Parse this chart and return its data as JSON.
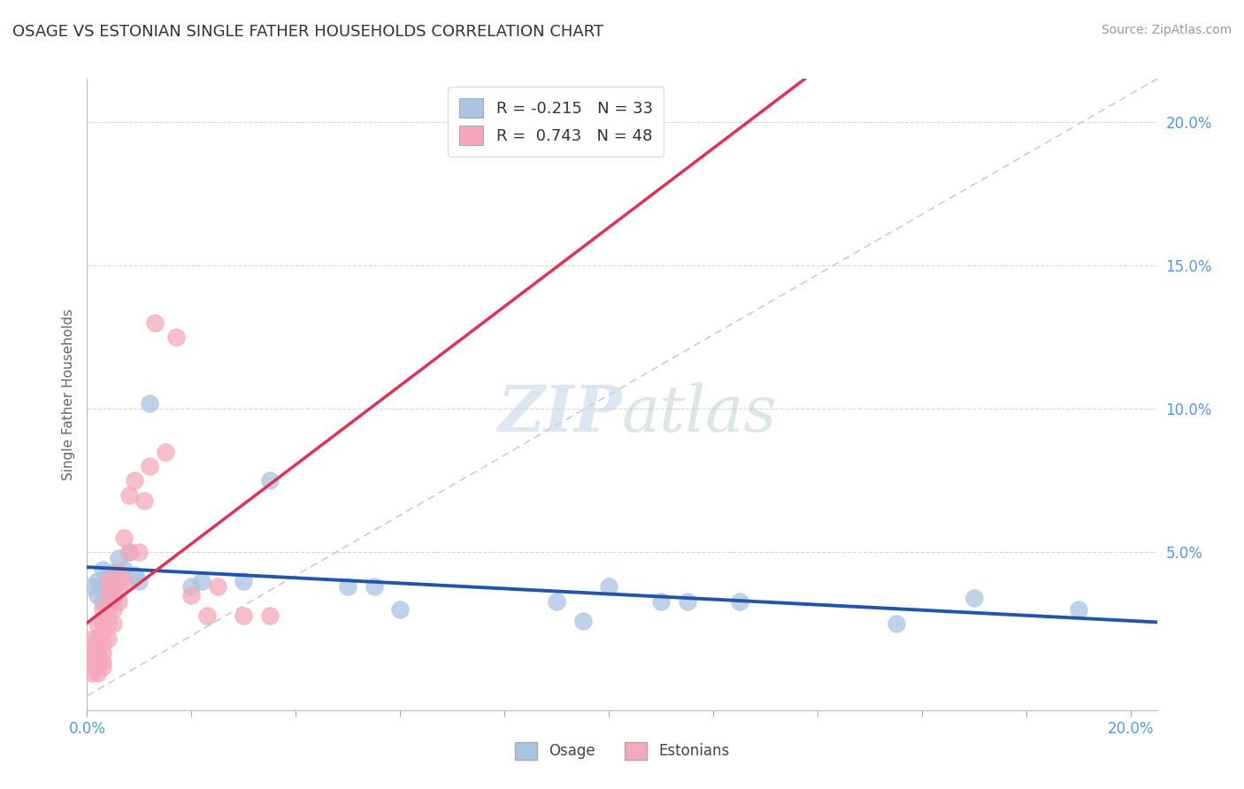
{
  "title": "OSAGE VS ESTONIAN SINGLE FATHER HOUSEHOLDS CORRELATION CHART",
  "source": "Source: ZipAtlas.com",
  "ylabel": "Single Father Households",
  "xlim": [
    0.0,
    0.205
  ],
  "ylim": [
    -0.005,
    0.215
  ],
  "ytick_vals": [
    0.05,
    0.1,
    0.15,
    0.2
  ],
  "xtick_vals": [
    0.0,
    0.2
  ],
  "osage_color": "#aac4e2",
  "estonian_color": "#f5a8bc",
  "osage_edge_color": "#88aad0",
  "estonian_edge_color": "#e888a8",
  "osage_line_color": "#2255aa",
  "estonian_line_color": "#dd3355",
  "diagonal_color": "#ccb8c8",
  "legend_R1": "-0.215",
  "legend_N1": "33",
  "legend_R2": "0.743",
  "legend_N2": "48",
  "background_color": "#ffffff",
  "grid_color": "#d8d8d8",
  "tick_color": "#5599dd",
  "title_color": "#333333",
  "ylabel_color": "#666666",
  "osage_x": [
    0.001,
    0.002,
    0.002,
    0.003,
    0.003,
    0.003,
    0.004,
    0.004,
    0.005,
    0.005,
    0.006,
    0.006,
    0.007,
    0.008,
    0.009,
    0.01,
    0.012,
    0.02,
    0.022,
    0.03,
    0.035,
    0.05,
    0.055,
    0.06,
    0.09,
    0.095,
    0.1,
    0.11,
    0.115,
    0.125,
    0.155,
    0.17,
    0.19
  ],
  "osage_y": [
    0.038,
    0.035,
    0.04,
    0.033,
    0.038,
    0.044,
    0.037,
    0.042,
    0.038,
    0.043,
    0.04,
    0.048,
    0.044,
    0.05,
    0.042,
    0.04,
    0.102,
    0.038,
    0.04,
    0.04,
    0.075,
    0.038,
    0.038,
    0.03,
    0.033,
    0.026,
    0.038,
    0.033,
    0.033,
    0.033,
    0.025,
    0.034,
    0.03
  ],
  "estonian_x": [
    0.001,
    0.001,
    0.001,
    0.001,
    0.001,
    0.001,
    0.002,
    0.002,
    0.002,
    0.002,
    0.002,
    0.002,
    0.002,
    0.003,
    0.003,
    0.003,
    0.003,
    0.003,
    0.003,
    0.003,
    0.004,
    0.004,
    0.004,
    0.004,
    0.004,
    0.005,
    0.005,
    0.005,
    0.005,
    0.006,
    0.006,
    0.006,
    0.007,
    0.007,
    0.008,
    0.008,
    0.009,
    0.01,
    0.011,
    0.012,
    0.013,
    0.015,
    0.017,
    0.02,
    0.023,
    0.025,
    0.03,
    0.035
  ],
  "estonian_y": [
    0.008,
    0.01,
    0.012,
    0.015,
    0.017,
    0.02,
    0.008,
    0.01,
    0.012,
    0.015,
    0.018,
    0.02,
    0.025,
    0.01,
    0.012,
    0.015,
    0.018,
    0.022,
    0.025,
    0.03,
    0.02,
    0.025,
    0.03,
    0.035,
    0.04,
    0.025,
    0.03,
    0.035,
    0.04,
    0.033,
    0.038,
    0.043,
    0.04,
    0.055,
    0.05,
    0.07,
    0.075,
    0.05,
    0.068,
    0.08,
    0.13,
    0.085,
    0.125,
    0.035,
    0.028,
    0.038,
    0.028,
    0.028
  ]
}
